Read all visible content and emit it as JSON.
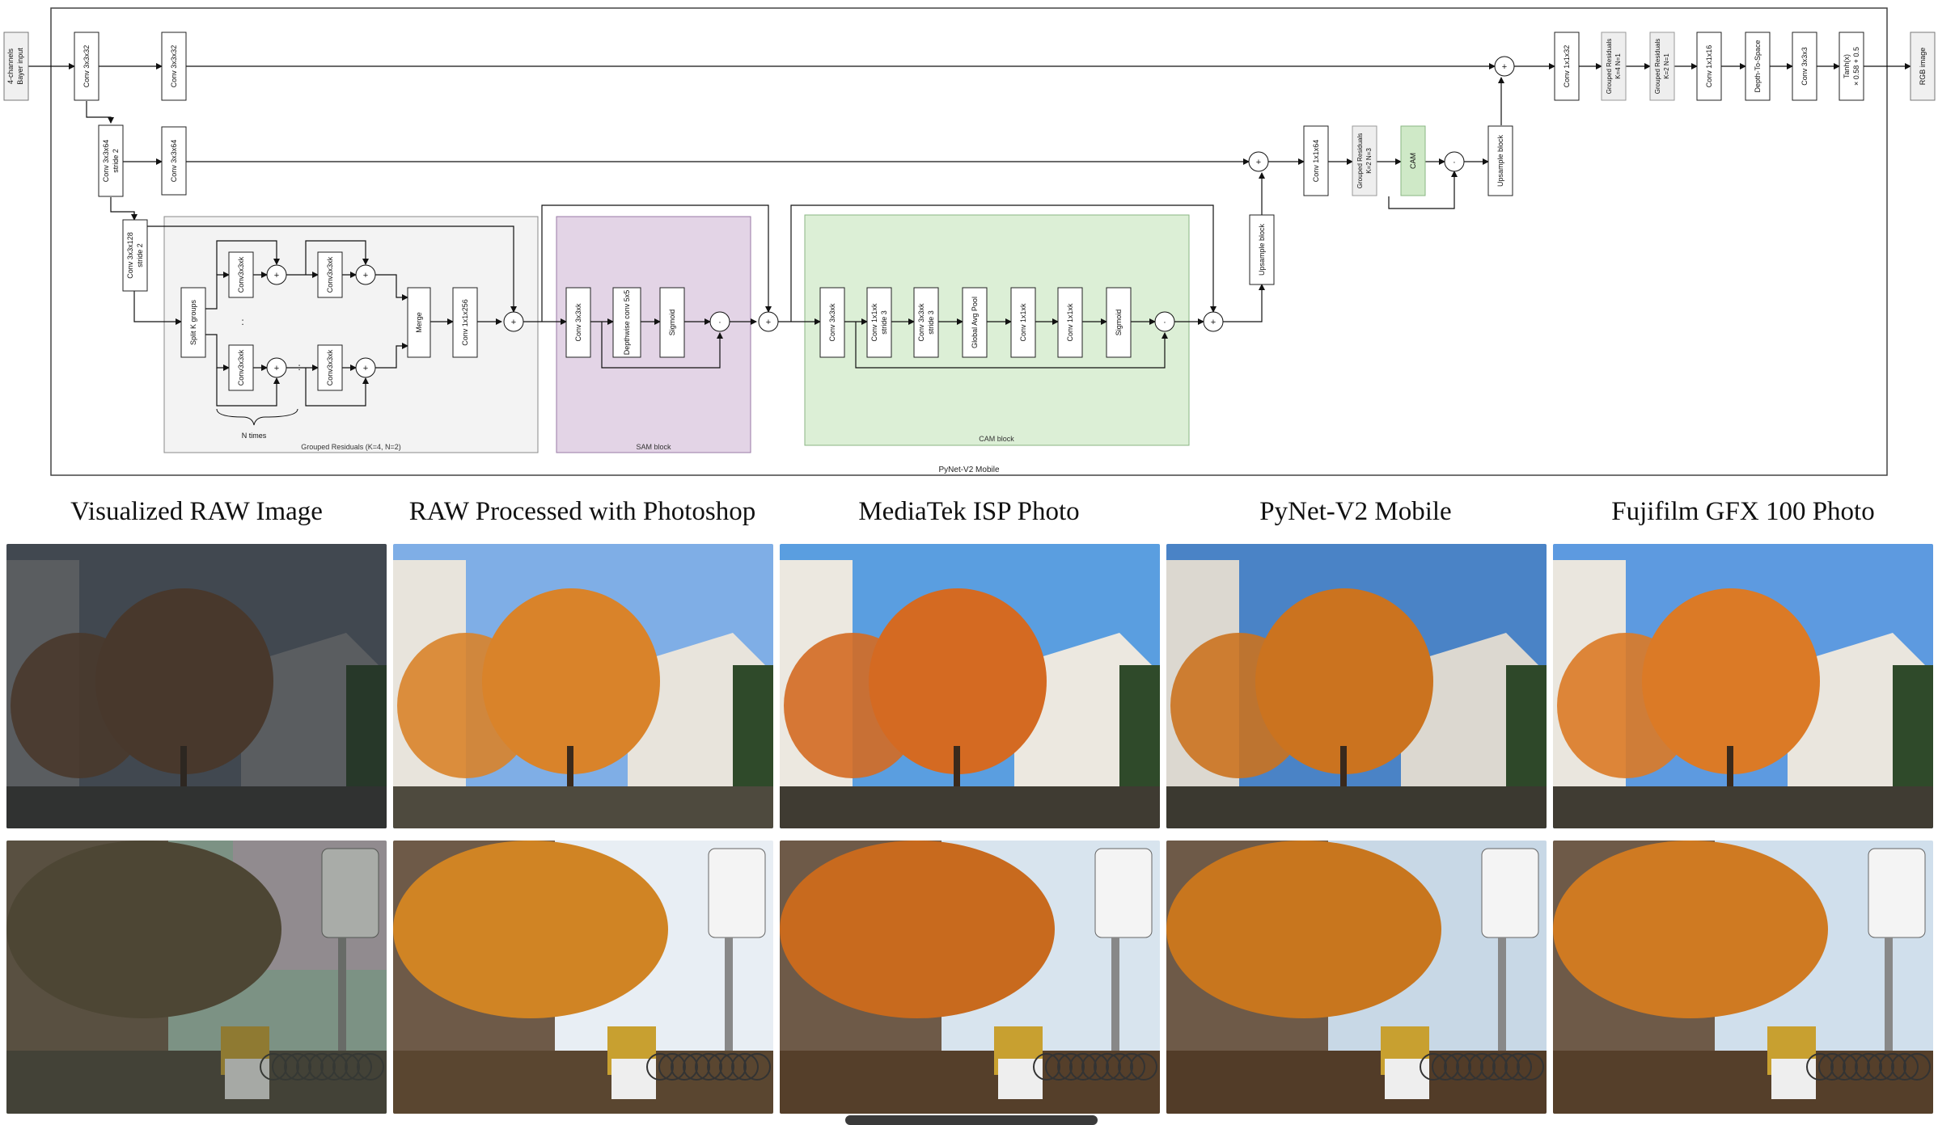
{
  "diagram": {
    "outer_label": "PyNet-V2 Mobile",
    "input_label": [
      "4-channels",
      "Bayer input"
    ],
    "output_label": "RGB image",
    "top_row": [
      "Conv 3x3x32",
      "Conv 3x3x32"
    ],
    "second_row": [
      "Conv 3x3x64",
      "stride 2",
      "Conv 3x3x64"
    ],
    "third_row_entry": [
      "Conv 3x3x128",
      "stride 2"
    ],
    "grouped_residuals": {
      "label": "Grouped Residuals (K=4, N=2)",
      "split": "Split K groups",
      "conv": "Conv3x3xk",
      "merge": "Merge",
      "conv_out": "Conv 1x1x256",
      "n_times": "N times",
      "dots": ":"
    },
    "sam_block": {
      "label": "SAM block",
      "conv": "Conv 3x3xk",
      "dw": "Depthwise conv 5x5",
      "sigmoid": "Sigmoid"
    },
    "cam_block": {
      "label": "CAM block",
      "conv": "Conv 3x3xk",
      "conv2": [
        "Conv 1x1xk",
        "stride 3"
      ],
      "conv3": [
        "Conv 3x3xk",
        "stride 3"
      ],
      "gap": "Global Avg Pool",
      "conv4": "Conv 1x1xk",
      "conv5": "Conv 1x1xk",
      "sigmoid": "Sigmoid"
    },
    "upsample": "Upsample block",
    "mid_path": {
      "conv": "Conv 1x1x64",
      "gr": [
        "Grouped Residuals",
        "K=2 N=3"
      ],
      "cam": "CAM"
    },
    "final_path": {
      "conv1": "Conv 1x1x32",
      "gr1": [
        "Grouped Residuals",
        "K=4 N=1"
      ],
      "gr2": [
        "Grouped Residuals",
        "K=2 N=1"
      ],
      "conv2": "Conv 1x1x16",
      "d2s": "Depth-To-Space",
      "conv3": "Conv 3x3x3",
      "tanh": [
        "Tanh(x)",
        "× 0.58 + 0.5"
      ]
    },
    "ops": {
      "plus": "+",
      "times": "·"
    }
  },
  "captions": [
    "Visualized RAW Image",
    "RAW Processed with Photoshop",
    "MediaTek ISP Photo",
    "PyNet-V2 Mobile",
    "Fujifilm GFX 100 Photo"
  ],
  "colors": {
    "gr_bg": "#f3f3f3",
    "sam_bg": "#e3d4e6",
    "cam_bg": "#dcefd6",
    "cam_box": "#cfe9c7",
    "gr_small_bg": "#eeeeee"
  }
}
